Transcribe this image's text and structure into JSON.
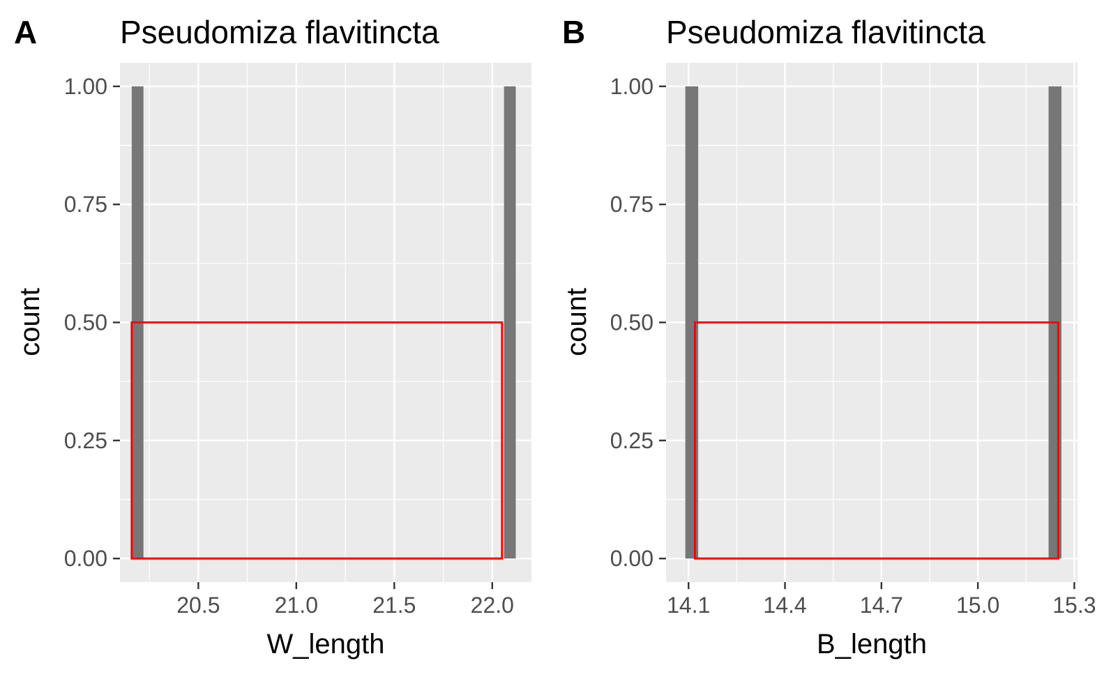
{
  "chart_data": [
    {
      "type": "bar",
      "panel_label": "A",
      "title": "Pseudomiza flavitincta",
      "xlabel": "W_length",
      "ylabel": "count",
      "xlim": [
        20.1,
        22.2
      ],
      "ylim": [
        -0.05,
        1.05
      ],
      "x_ticks": [
        20.5,
        21.0,
        21.5,
        22.0
      ],
      "x_tick_labels": [
        "20.5",
        "21.0",
        "21.5",
        "22.0"
      ],
      "y_ticks": [
        0,
        0.25,
        0.5,
        0.75,
        1.0
      ],
      "y_tick_labels": [
        "0.00",
        "0.25",
        "0.50",
        "0.75",
        "1.00"
      ],
      "bars": [
        {
          "x0": 20.16,
          "x1": 20.22,
          "count": 1
        },
        {
          "x0": 22.06,
          "x1": 22.12,
          "count": 1
        }
      ],
      "highlight_box": {
        "x0": 20.16,
        "x1": 22.05,
        "y0": 0,
        "y1": 0.5
      },
      "grid": true,
      "colors": {
        "panel_bg": "#ebebeb",
        "grid": "#ffffff",
        "bar": "#777777",
        "highlight": "#ff0000"
      }
    },
    {
      "type": "bar",
      "panel_label": "B",
      "title": "Pseudomiza flavitincta",
      "xlabel": "B_length",
      "ylabel": "count",
      "xlim": [
        14.03,
        15.31
      ],
      "ylim": [
        -0.05,
        1.05
      ],
      "x_ticks": [
        14.1,
        14.4,
        14.7,
        15.0,
        15.3
      ],
      "x_tick_labels": [
        "14.1",
        "14.4",
        "14.7",
        "15.0",
        "15.3"
      ],
      "y_ticks": [
        0,
        0.25,
        0.5,
        0.75,
        1.0
      ],
      "y_tick_labels": [
        "0.00",
        "0.25",
        "0.50",
        "0.75",
        "1.00"
      ],
      "bars": [
        {
          "x0": 14.09,
          "x1": 14.13,
          "count": 1
        },
        {
          "x0": 15.22,
          "x1": 15.26,
          "count": 1
        }
      ],
      "highlight_box": {
        "x0": 14.12,
        "x1": 15.25,
        "y0": 0,
        "y1": 0.5
      },
      "grid": true,
      "colors": {
        "panel_bg": "#ebebeb",
        "grid": "#ffffff",
        "bar": "#777777",
        "highlight": "#ff0000"
      }
    }
  ]
}
